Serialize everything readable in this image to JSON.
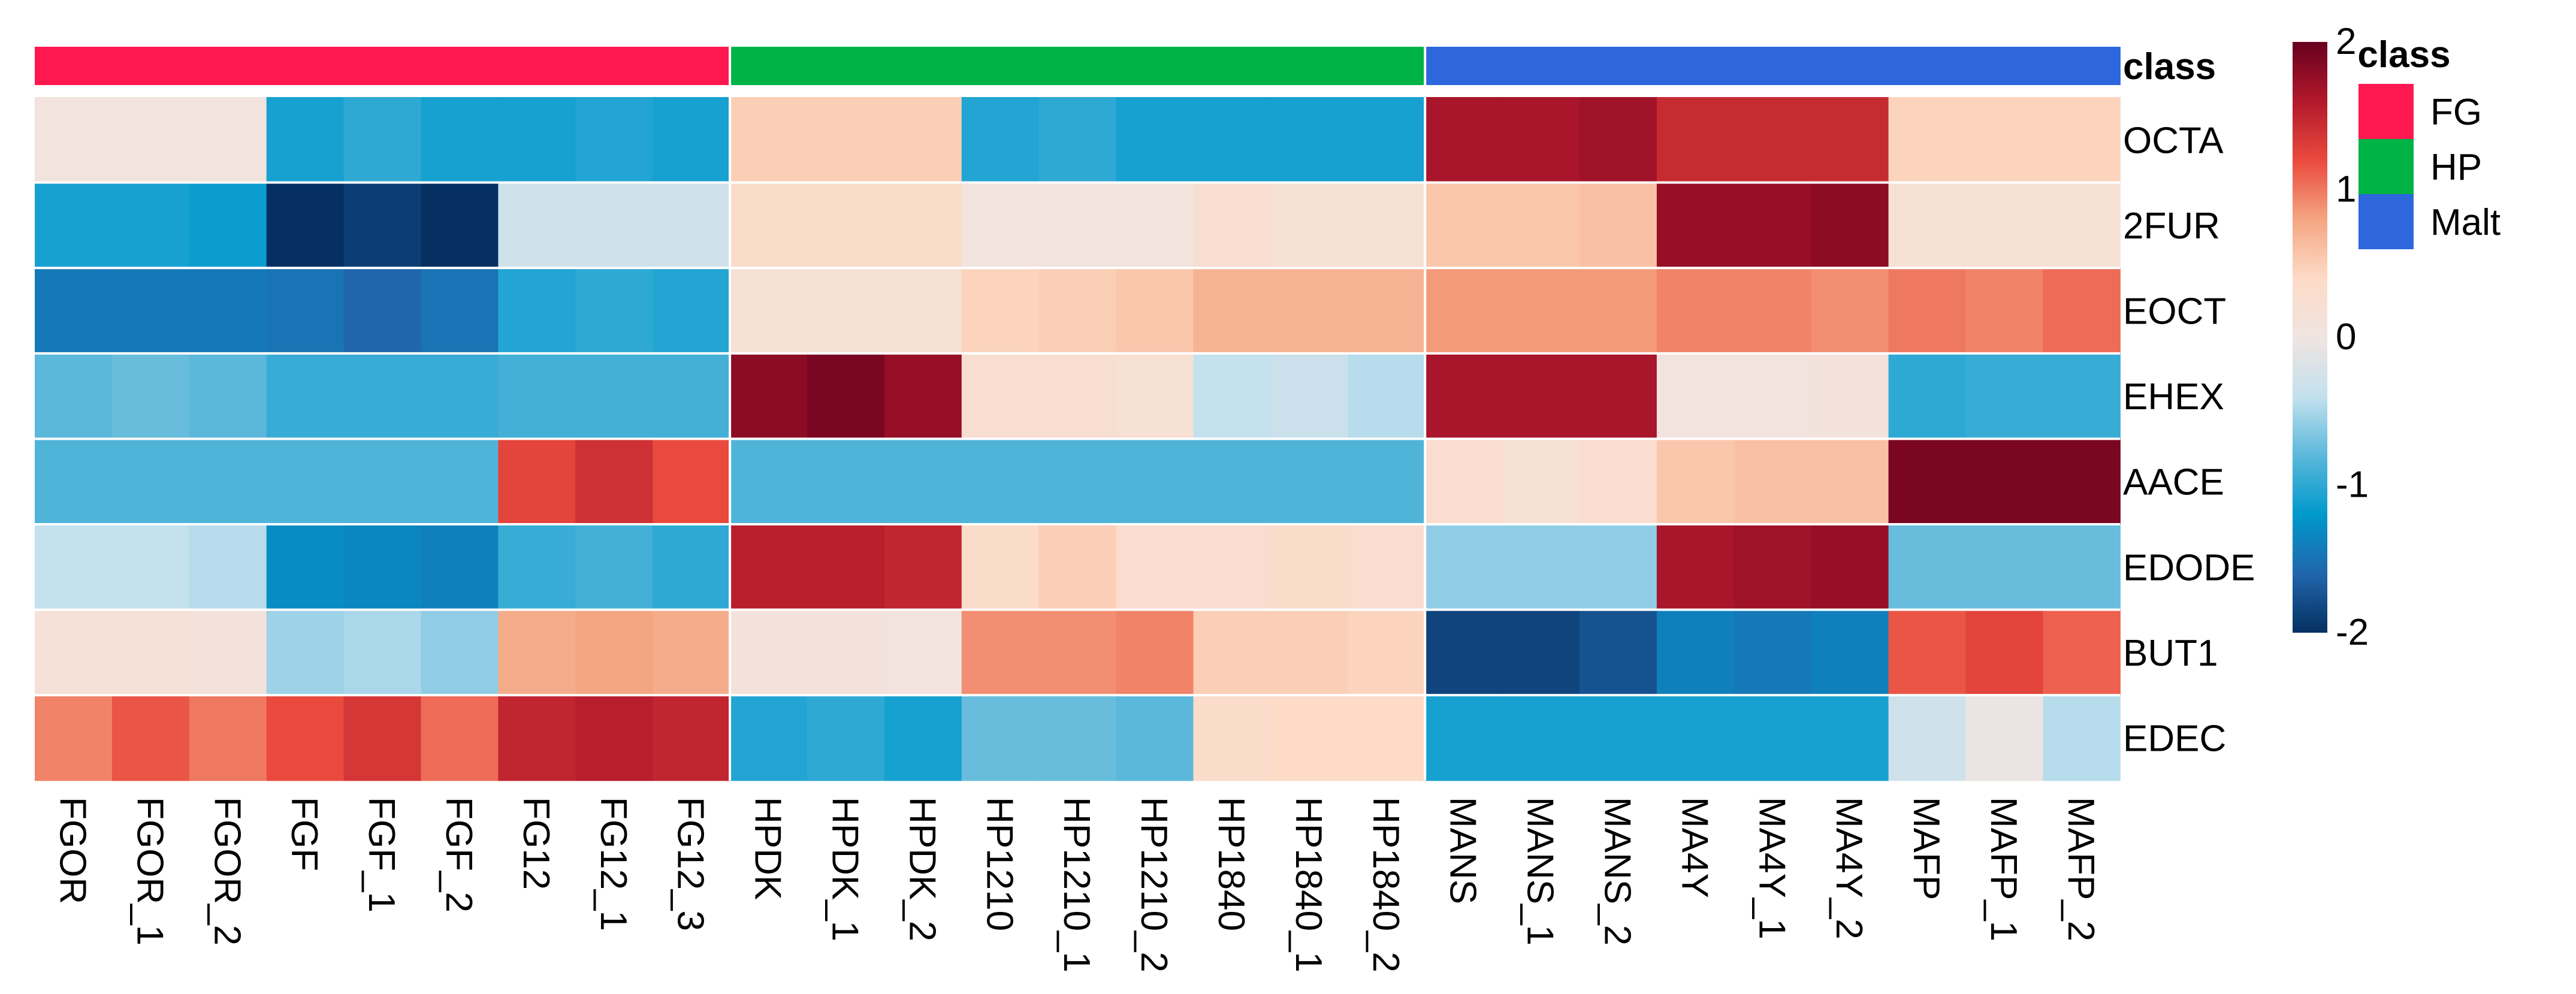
{
  "chart_data": {
    "type": "heatmap",
    "columns": [
      "FGOR",
      "FGOR_1",
      "FGOR_2",
      "FGF",
      "FGF_1",
      "FGF_2",
      "FG12",
      "FG12_1",
      "FG12_3",
      "HPDK",
      "HPDK_1",
      "HPDK_2",
      "HP1210",
      "HP1210_1",
      "HP1210_2",
      "HP1840",
      "HP1840_1",
      "HP1840_2",
      "MANS",
      "MANS_1",
      "MANS_2",
      "MA4Y",
      "MA4Y_1",
      "MA4Y_2",
      "MAFP",
      "MAFP_1",
      "MAFP_2"
    ],
    "rows": [
      "OCTA",
      "2FUR",
      "EOCT",
      "EHEX",
      "AACE",
      "EDODE",
      "BUT1",
      "EDEC"
    ],
    "column_class": [
      "FG",
      "FG",
      "FG",
      "FG",
      "FG",
      "FG",
      "FG",
      "FG",
      "FG",
      "HP",
      "HP",
      "HP",
      "HP",
      "HP",
      "HP",
      "HP",
      "HP",
      "HP",
      "Malt",
      "Malt",
      "Malt",
      "Malt",
      "Malt",
      "Malt",
      "Malt",
      "Malt",
      "Malt"
    ],
    "annotation_label": "class",
    "values": [
      [
        0.05,
        0.05,
        0.05,
        -1.1,
        -1.0,
        -1.1,
        -1.1,
        -1.05,
        -1.1,
        0.5,
        0.5,
        0.5,
        -1.05,
        -1.0,
        -1.1,
        -1.1,
        -1.1,
        -1.1,
        1.65,
        1.65,
        1.7,
        1.45,
        1.45,
        1.45,
        0.45,
        0.45,
        0.45
      ],
      [
        -1.1,
        -1.1,
        -1.15,
        -2.0,
        -1.9,
        -2.0,
        -0.3,
        -0.3,
        -0.3,
        0.35,
        0.35,
        0.35,
        0.05,
        0.05,
        0.05,
        0.25,
        0.2,
        0.2,
        0.55,
        0.55,
        0.6,
        1.75,
        1.75,
        1.8,
        0.2,
        0.2,
        0.2
      ],
      [
        -1.45,
        -1.45,
        -1.45,
        -1.5,
        -1.6,
        -1.5,
        -1.05,
        -1.0,
        -1.05,
        0.2,
        0.2,
        0.2,
        0.45,
        0.5,
        0.55,
        0.7,
        0.7,
        0.7,
        0.85,
        0.85,
        0.85,
        0.95,
        0.95,
        0.9,
        1.0,
        0.95,
        1.05
      ],
      [
        -0.8,
        -0.75,
        -0.8,
        -0.95,
        -0.95,
        -0.95,
        -0.9,
        -0.9,
        -0.9,
        1.8,
        1.9,
        1.75,
        0.25,
        0.25,
        0.2,
        -0.4,
        -0.35,
        -0.45,
        1.65,
        1.65,
        1.65,
        0.05,
        0.05,
        0.1,
        -1.0,
        -0.95,
        -0.95
      ],
      [
        -0.85,
        -0.85,
        -0.85,
        -0.85,
        -0.85,
        -0.85,
        1.25,
        1.4,
        1.2,
        -0.85,
        -0.85,
        -0.85,
        -0.85,
        -0.85,
        -0.85,
        -0.85,
        -0.85,
        -0.85,
        0.3,
        0.2,
        0.3,
        0.55,
        0.6,
        0.6,
        1.9,
        1.9,
        1.9
      ],
      [
        -0.4,
        -0.4,
        -0.45,
        -1.3,
        -1.35,
        -1.4,
        -0.95,
        -0.9,
        -1.0,
        1.55,
        1.55,
        1.5,
        0.35,
        0.5,
        0.3,
        0.3,
        0.35,
        0.3,
        -0.6,
        -0.6,
        -0.6,
        1.65,
        1.7,
        1.75,
        -0.75,
        -0.75,
        -0.75
      ],
      [
        0.15,
        0.15,
        0.1,
        -0.55,
        -0.5,
        -0.6,
        0.75,
        0.8,
        0.75,
        0.1,
        0.1,
        0.05,
        0.9,
        0.9,
        0.95,
        0.5,
        0.5,
        0.45,
        -1.85,
        -1.85,
        -1.75,
        -1.4,
        -1.45,
        -1.4,
        1.15,
        1.25,
        1.1
      ],
      [
        0.95,
        1.15,
        1.0,
        1.2,
        1.35,
        1.05,
        1.5,
        1.55,
        1.5,
        -1.05,
        -1.0,
        -1.1,
        -0.75,
        -0.75,
        -0.8,
        0.35,
        0.4,
        0.4,
        -1.1,
        -1.1,
        -1.1,
        -1.1,
        -1.1,
        -1.1,
        -0.3,
        -0.05,
        -0.45
      ]
    ],
    "color_scale": {
      "min": -2,
      "max": 2,
      "stops": [
        "#053061",
        "#2166AC",
        "#0099CC",
        "#5BB8DB",
        "#C4E1EE",
        "#F0E4E1",
        "#FDDBC7",
        "#F4A582",
        "#EA4A3D",
        "#B2182B",
        "#67001F"
      ],
      "ticks": [
        2,
        1,
        0,
        -1,
        -2
      ]
    },
    "legend": {
      "title": "class",
      "entries": [
        {
          "label": "FG",
          "color": "#FF1850"
        },
        {
          "label": "HP",
          "color": "#00B347"
        },
        {
          "label": "Malt",
          "color": "#2E66DD"
        }
      ]
    }
  }
}
